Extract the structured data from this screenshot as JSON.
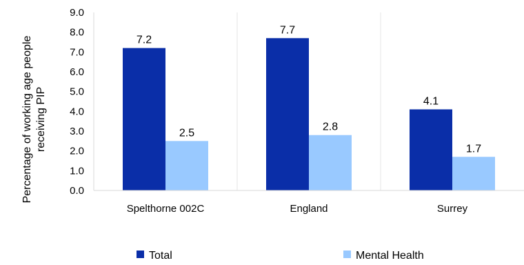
{
  "chart_data": {
    "type": "bar",
    "categories": [
      "Spelthorne 002C",
      "England",
      "Surrey"
    ],
    "series": [
      {
        "name": "Total",
        "values": [
          7.2,
          7.7,
          4.1
        ],
        "color": "#0a2ea8"
      },
      {
        "name": "Mental Health",
        "values": [
          2.5,
          2.8,
          1.7
        ],
        "color": "#99c9ff"
      }
    ],
    "ylabel_lines": [
      "Percentage of working age people",
      "receiving PIP"
    ],
    "ylim": [
      0,
      9
    ],
    "yticks": [
      "0.0",
      "1.0",
      "2.0",
      "3.0",
      "4.0",
      "5.0",
      "6.0",
      "7.0",
      "8.0",
      "9.0"
    ],
    "grid": "vertical-category-separators",
    "legend_position": "bottom"
  }
}
